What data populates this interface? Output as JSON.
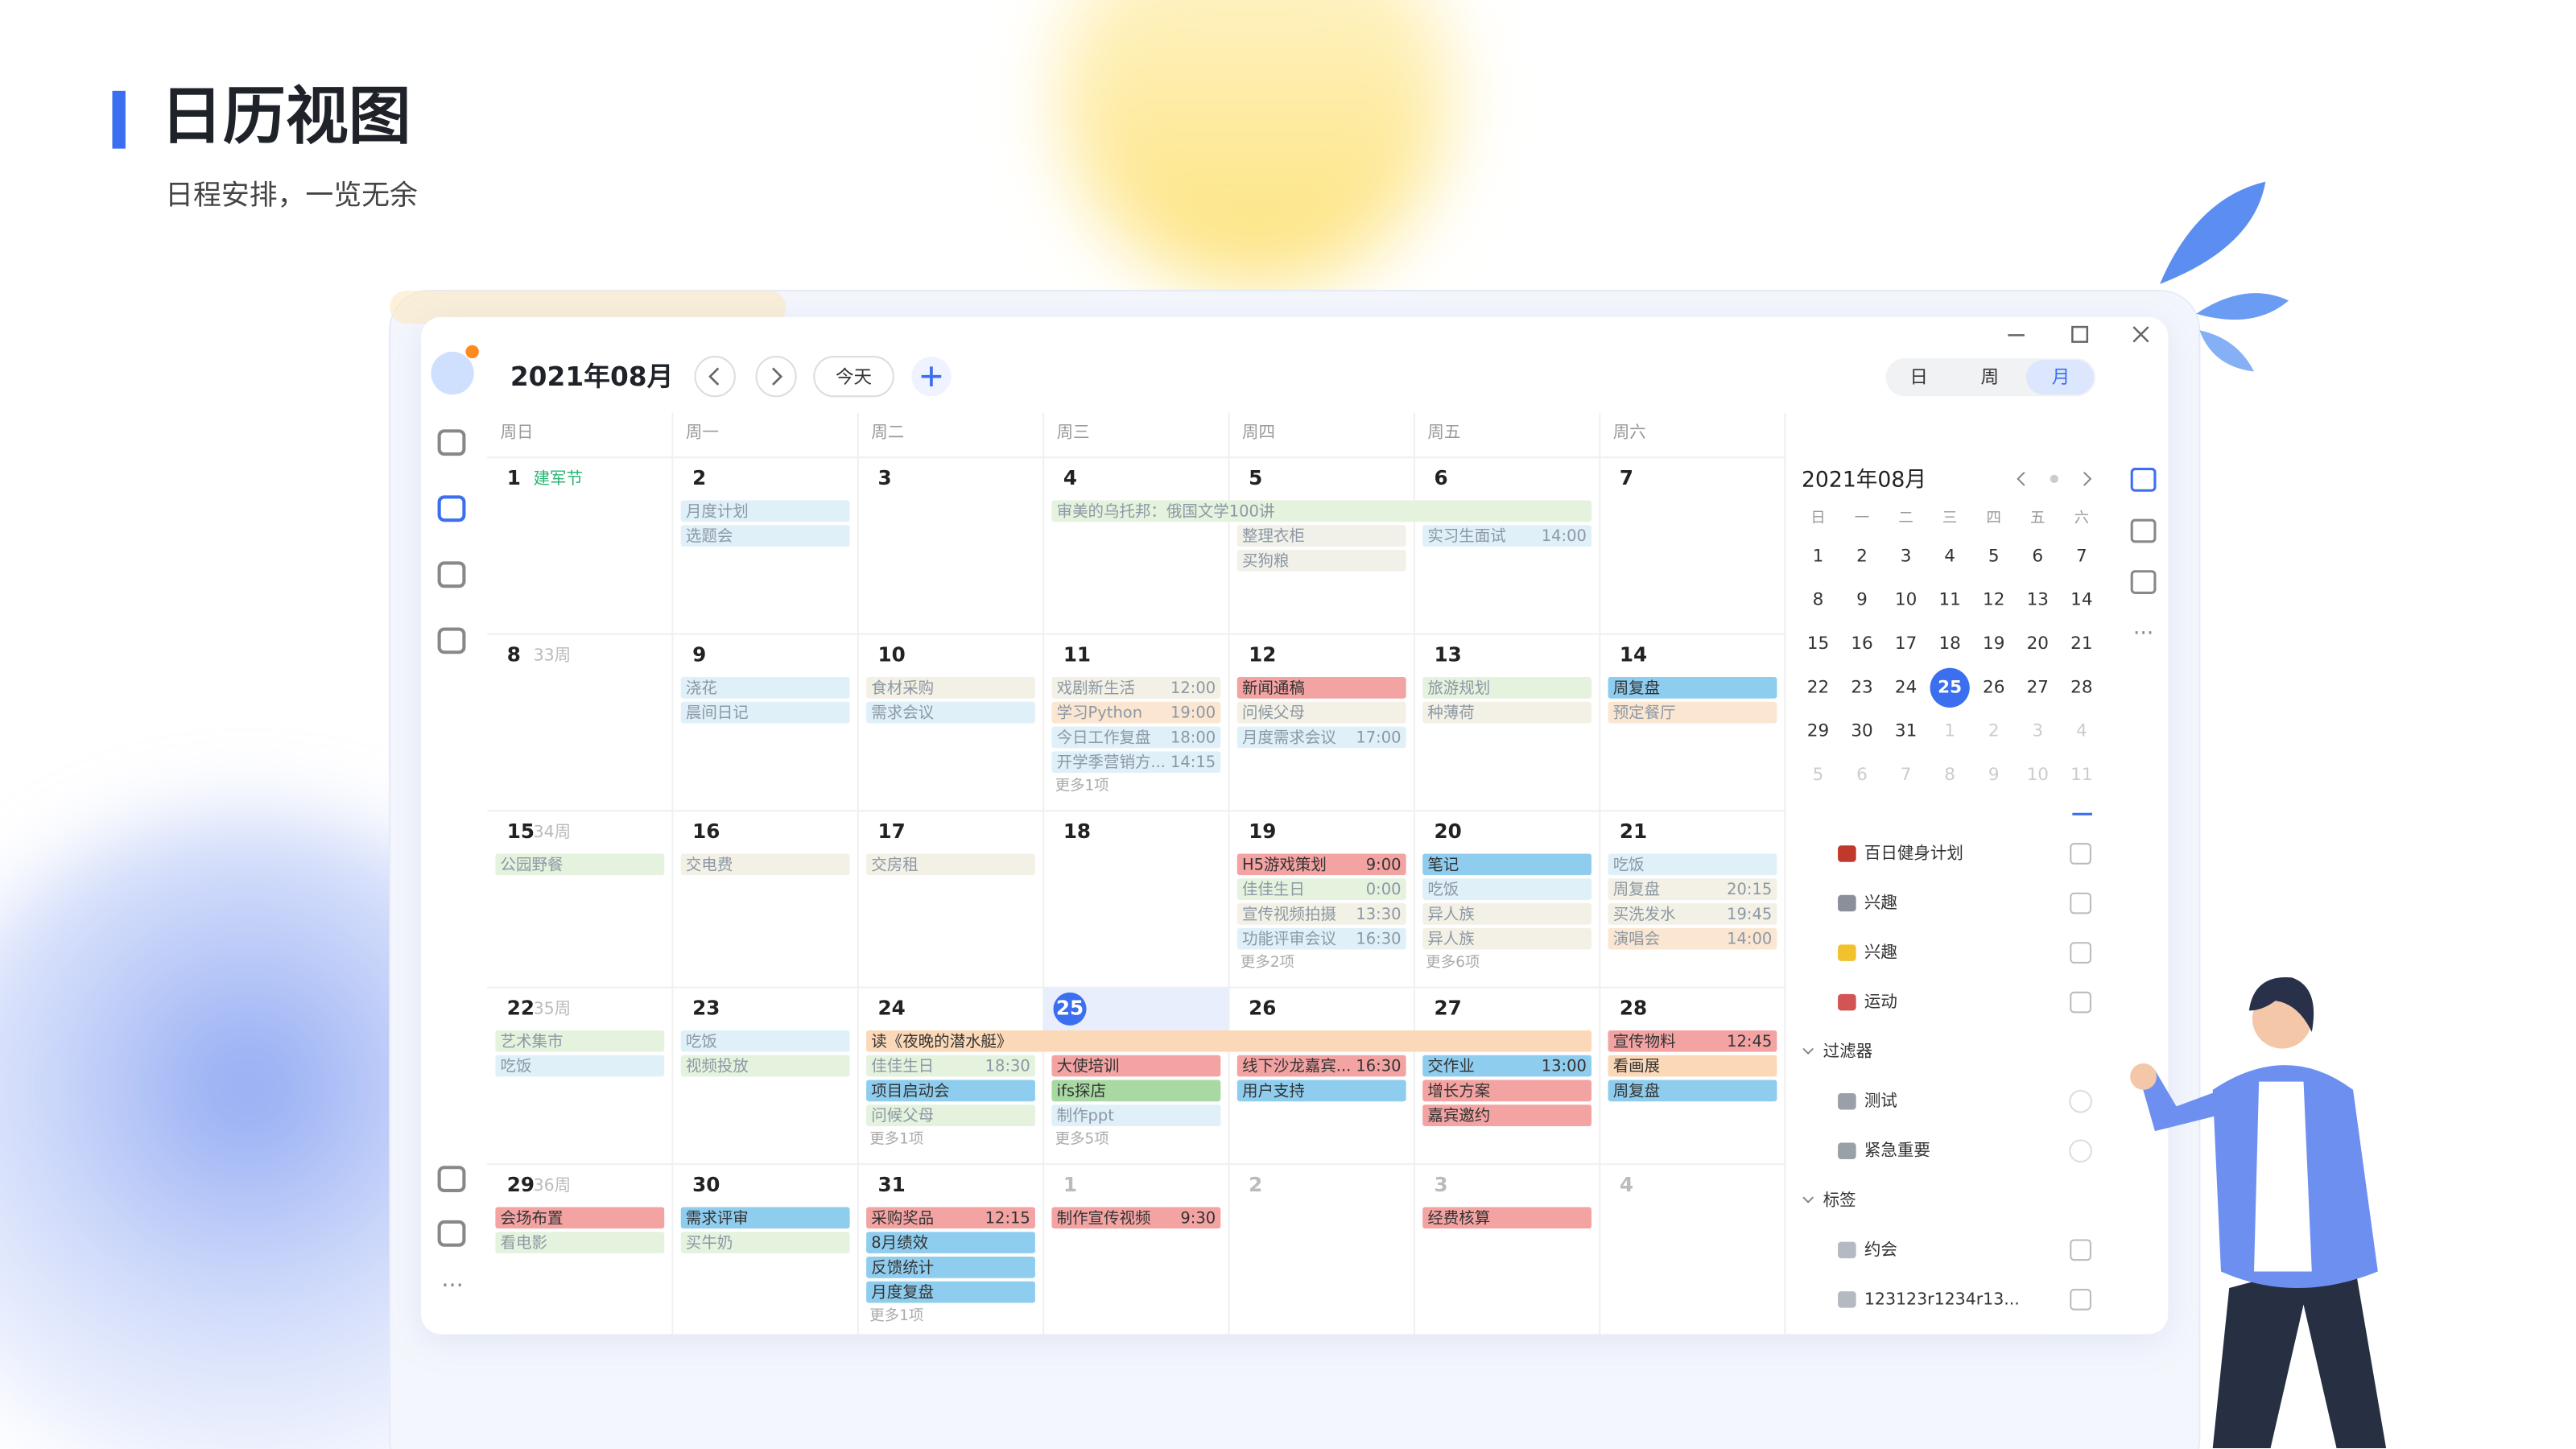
{
  "header": {
    "title": "日历视图",
    "subtitle": "日程安排，一览无余"
  },
  "toolbar": {
    "month": "2021年08月",
    "today": "今天",
    "views": [
      "日",
      "周",
      "月"
    ]
  },
  "weekdays": [
    "周日",
    "周一",
    "周二",
    "周三",
    "周四",
    "周五",
    "周六"
  ],
  "weeks": [
    {
      "days": [
        {
          "day": "1",
          "note": "建军节",
          "events": []
        },
        {
          "day": "2",
          "events": [
            {
              "text": "月度计划",
              "color": "#dff0f9"
            },
            {
              "text": "选题会",
              "color": "#dff0f9"
            }
          ]
        },
        {
          "day": "3",
          "events": []
        },
        {
          "day": "4",
          "events": [
            {
              "text": "审美的乌托邦：俄国文学100讲",
              "color": "#e4f2de"
            }
          ]
        },
        {
          "day": "5",
          "events": [
            {
              "text": "整理衣柜",
              "color": "#f1f1ea"
            },
            {
              "text": "买狗粮",
              "color": "#f1f1ea"
            }
          ]
        },
        {
          "day": "6",
          "events": [
            {
              "text": "实习生面试",
              "time": "14:00",
              "color": "#dff0f9"
            }
          ]
        },
        {
          "day": "7",
          "events": []
        }
      ]
    },
    {
      "week": "33周",
      "days": [
        {
          "day": "8",
          "events": []
        },
        {
          "day": "9",
          "events": [
            {
              "text": "浇花",
              "color": "#dff0f9"
            },
            {
              "text": "晨间日记",
              "color": "#dff0f9"
            }
          ]
        },
        {
          "day": "10",
          "events": [
            {
              "text": "食材采购",
              "color": "#f3f1e6"
            },
            {
              "text": "需求会议",
              "color": "#dff0f9"
            }
          ]
        },
        {
          "day": "11",
          "events": [
            {
              "text": "戏剧新生活",
              "time": "12:00",
              "color": "#f3f1e6"
            },
            {
              "text": "学习Python",
              "time": "19:00",
              "color": "#fbe6d2"
            },
            {
              "text": "今日工作复盘",
              "time": "18:00",
              "color": "#dff0f9"
            },
            {
              "text": "开学季营销方...",
              "time": "14:15",
              "color": "#dff0f9"
            }
          ],
          "more": "更多1项"
        },
        {
          "day": "12",
          "events": [
            {
              "text": "新闻通稿",
              "color": "#f4a3a3"
            },
            {
              "text": "问候父母",
              "color": "#f3f1e6"
            },
            {
              "text": "月度需求会议",
              "time": "17:00",
              "color": "#dff0f9"
            }
          ]
        },
        {
          "day": "13",
          "events": [
            {
              "text": "旅游规划",
              "color": "#e4f2de"
            },
            {
              "text": "种薄荷",
              "color": "#f3f1e6"
            }
          ]
        },
        {
          "day": "14",
          "events": [
            {
              "text": "周复盘",
              "color": "#8fcdef"
            },
            {
              "text": "预定餐厅",
              "color": "#fbe6d2"
            }
          ]
        }
      ]
    },
    {
      "week": "34周",
      "days": [
        {
          "day": "15",
          "events": [
            {
              "text": "公园野餐",
              "color": "#e4f2de"
            }
          ]
        },
        {
          "day": "16",
          "events": [
            {
              "text": "交电费",
              "color": "#f3f1e6"
            }
          ]
        },
        {
          "day": "17",
          "events": [
            {
              "text": "交房租",
              "color": "#f3f1e6"
            }
          ]
        },
        {
          "day": "18",
          "events": []
        },
        {
          "day": "19",
          "events": [
            {
              "text": "H5游戏策划",
              "time": "9:00",
              "color": "#f4a3a3"
            },
            {
              "text": "佳佳生日",
              "time": "0:00",
              "color": "#e4f2de"
            },
            {
              "text": "宣传视频拍摄",
              "time": "13:30",
              "color": "#f3f1e6"
            },
            {
              "text": "功能评审会议",
              "time": "16:30",
              "color": "#dff0f9"
            }
          ],
          "more": "更多2项"
        },
        {
          "day": "20",
          "events": [
            {
              "text": "笔记",
              "color": "#8fcdef"
            },
            {
              "text": "吃饭",
              "color": "#dff0f9"
            },
            {
              "text": "异人族",
              "color": "#f3f1e6"
            },
            {
              "text": "异人族",
              "color": "#f3f1e6"
            }
          ],
          "more": "更多6项"
        },
        {
          "day": "21",
          "events": [
            {
              "text": "吃饭",
              "color": "#dff0f9"
            },
            {
              "text": "周复盘",
              "time": "20:15",
              "color": "#f3f1e6"
            },
            {
              "text": "买洗发水",
              "time": "19:45",
              "color": "#f3f1e6"
            },
            {
              "text": "演唱会",
              "time": "14:00",
              "color": "#fbe6d2"
            }
          ]
        }
      ]
    },
    {
      "week": "35周",
      "days": [
        {
          "day": "22",
          "events": [
            {
              "text": "艺术集市",
              "color": "#e4f2de"
            },
            {
              "text": "吃饭",
              "color": "#dff0f9"
            }
          ]
        },
        {
          "day": "23",
          "events": [
            {
              "text": "吃饭",
              "color": "#dff0f9"
            },
            {
              "text": "视频投放",
              "color": "#e4f2de"
            }
          ]
        },
        {
          "day": "24",
          "events": [
            {
              "text": "读《夜晚的潜水艇》",
              "color": "#fbd9b8"
            },
            {
              "text": "佳佳生日",
              "time": "18:30",
              "color": "#e4f2de"
            },
            {
              "text": "项目启动会",
              "color": "#8fcdef"
            },
            {
              "text": "问候父母",
              "color": "#e4f2de"
            }
          ],
          "more": "更多1项"
        },
        {
          "day": "25",
          "events": [
            {
              "text": "大使培训",
              "color": "#f4a3a3"
            },
            {
              "text": "ifs探店",
              "color": "#a9d9a3"
            },
            {
              "text": "制作ppt",
              "color": "#dff0f9"
            }
          ],
          "more": "更多5项"
        },
        {
          "day": "26",
          "events": [
            {
              "text": "线下沙龙嘉宾...",
              "time": "16:30",
              "color": "#f4a3a3"
            },
            {
              "text": "用户支持",
              "color": "#8fcdef"
            }
          ]
        },
        {
          "day": "27",
          "events": [
            {
              "text": "交作业",
              "time": "13:00",
              "color": "#8fcdef"
            },
            {
              "text": "增长方案",
              "color": "#f4a3a3"
            },
            {
              "text": "嘉宾邀约",
              "color": "#f4a3a3"
            }
          ]
        },
        {
          "day": "28",
          "events": [
            {
              "text": "宣传物料",
              "time": "12:45",
              "color": "#f4a3a3"
            },
            {
              "text": "看画展",
              "color": "#fbd9b8"
            },
            {
              "text": "周复盘",
              "color": "#8fcdef"
            }
          ]
        }
      ]
    },
    {
      "week": "36周",
      "days": [
        {
          "day": "29",
          "events": [
            {
              "text": "会场布置",
              "color": "#f4a3a3"
            },
            {
              "text": "看电影",
              "color": "#e4f2de"
            }
          ]
        },
        {
          "day": "30",
          "events": [
            {
              "text": "需求评审",
              "color": "#8fcdef"
            },
            {
              "text": "买牛奶",
              "color": "#e4f2de"
            }
          ]
        },
        {
          "day": "31",
          "events": [
            {
              "text": "采购奖品",
              "time": "12:15",
              "color": "#f4a3a3"
            },
            {
              "text": "8月绩效",
              "color": "#8fcdef"
            },
            {
              "text": "反馈统计",
              "color": "#8fcdef"
            },
            {
              "text": "月度复盘",
              "color": "#8fcdef"
            }
          ],
          "more": "更多1项"
        },
        {
          "day": "1",
          "events": [
            {
              "text": "制作宣传视频",
              "time": "9:30",
              "color": "#f4a3a3"
            }
          ]
        },
        {
          "day": "2",
          "events": []
        },
        {
          "day": "3",
          "events": [
            {
              "text": "经费核算",
              "color": "#f4a3a3"
            }
          ]
        },
        {
          "day": "4",
          "events": []
        }
      ]
    }
  ],
  "mini": {
    "title": "2021年08月",
    "weekdays": [
      "日",
      "一",
      "二",
      "三",
      "四",
      "五",
      "六"
    ],
    "rows": [
      [
        "1",
        "2",
        "3",
        "4",
        "5",
        "6",
        "7"
      ],
      [
        "8",
        "9",
        "10",
        "11",
        "12",
        "13",
        "14"
      ],
      [
        "15",
        "16",
        "17",
        "18",
        "19",
        "20",
        "21"
      ],
      [
        "22",
        "23",
        "24",
        "25",
        "26",
        "27",
        "28"
      ],
      [
        "29",
        "30",
        "31",
        "1",
        "2",
        "3",
        "4"
      ],
      [
        "5",
        "6",
        "7",
        "8",
        "9",
        "10",
        "11"
      ]
    ]
  },
  "sidebar": {
    "projects": [
      "百日健身计划",
      "兴趣",
      "兴趣",
      "运动"
    ],
    "filters": {
      "title": "过滤器",
      "items": [
        "测试",
        "紧急重要"
      ]
    },
    "tags": {
      "title": "标签",
      "items": [
        "约会",
        "123123r1234r13..."
      ]
    }
  }
}
